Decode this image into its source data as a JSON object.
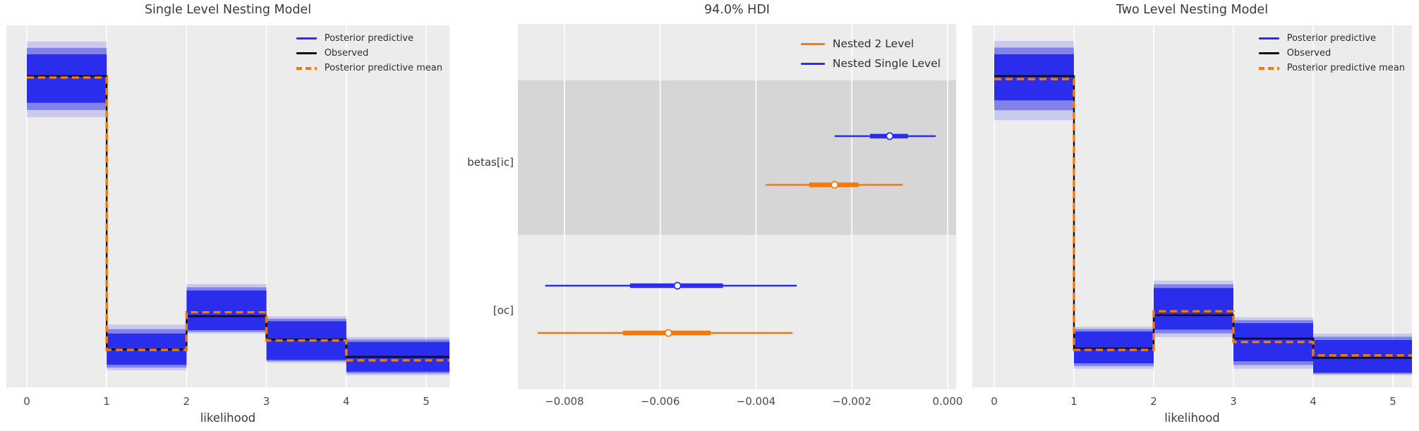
{
  "colors": {
    "figure_bg": "#ffffff",
    "panel_bg": "#ececec",
    "grid": "#ffffff",
    "shaded_band": "#d6d6d6",
    "blue": "#2a2eec",
    "orange": "#f5790a",
    "black": "#0d0d0d",
    "title_text": "#3a3a3a",
    "tick_text": "#4a4a4a"
  },
  "chart_data": [
    {
      "type": "area",
      "subtype": "posterior-predictive-step",
      "title": "Single Level Nesting Model",
      "xlabel": "likelihood",
      "ylabel": "",
      "xticks": [
        {
          "label": "0",
          "value": 0
        },
        {
          "label": "1",
          "value": 1
        },
        {
          "label": "2",
          "value": 2
        },
        {
          "label": "3",
          "value": 3
        },
        {
          "label": "4",
          "value": 4
        },
        {
          "label": "5",
          "value": 5
        }
      ],
      "xlim": [
        -0.26,
        5.29
      ],
      "ylim": [
        0,
        0.73
      ],
      "grid": "vertical-white",
      "legend": [
        "Posterior predictive",
        "Observed",
        "Posterior predictive mean"
      ],
      "legend_position": "upper right",
      "bins": [
        [
          0,
          1
        ],
        [
          1,
          2
        ],
        [
          2,
          3
        ],
        [
          3,
          4
        ],
        [
          4,
          5
        ]
      ],
      "series": [
        {
          "name": "Observed",
          "style": "black-step",
          "values": [
            0.627,
            0.075,
            0.142,
            0.095,
            0.06
          ]
        },
        {
          "name": "Posterior predictive mean",
          "style": "orange-dashed-step",
          "values": [
            0.624,
            0.074,
            0.15,
            0.093,
            0.053
          ]
        }
      ],
      "posterior_band": {
        "solid_hi": [
          0.671,
          0.107,
          0.194,
          0.132,
          0.09
        ],
        "solid_lo": [
          0.573,
          0.044,
          0.114,
          0.054,
          0.03
        ],
        "faint_hi": [
          0.697,
          0.125,
          0.207,
          0.142,
          0.1
        ],
        "faint_lo": [
          0.544,
          0.033,
          0.107,
          0.048,
          0.023
        ]
      }
    },
    {
      "type": "forest",
      "title": "94.0% HDI",
      "xticks": [
        {
          "label": "−0.008",
          "value": -0.008
        },
        {
          "label": "−0.006",
          "value": -0.006
        },
        {
          "label": "−0.004",
          "value": -0.004
        },
        {
          "label": "−0.002",
          "value": -0.002
        },
        {
          "label": "0.000",
          "value": 0.0
        }
      ],
      "xlim": [
        -0.00897,
        0.000177
      ],
      "grid": "vertical-white",
      "legend": [
        "Nested 2 Level",
        "Nested Single Level"
      ],
      "legend_position": "upper right",
      "rows": [
        {
          "label": "betas[ic]",
          "shaded": true,
          "items": [
            {
              "series": "Nested Single Level",
              "color": "blue",
              "hdi": [
                -0.00236,
                -0.00025
              ],
              "quartile": [
                -0.00162,
                -0.00083
              ],
              "median": -0.00121
            },
            {
              "series": "Nested 2 Level",
              "color": "orange",
              "hdi": [
                -0.0038,
                -0.00094
              ],
              "quartile": [
                -0.00289,
                -0.00186
              ],
              "median": -0.00236
            }
          ]
        },
        {
          "label": "[oc]",
          "shaded": false,
          "items": [
            {
              "series": "Nested Single Level",
              "color": "blue",
              "hdi": [
                -0.0084,
                -0.00315
              ],
              "quartile": [
                -0.00663,
                -0.00469
              ],
              "median": -0.00564
            },
            {
              "series": "Nested 2 Level",
              "color": "orange",
              "hdi": [
                -0.00856,
                -0.00324
              ],
              "quartile": [
                -0.00678,
                -0.00495
              ],
              "median": -0.00583
            }
          ]
        }
      ]
    },
    {
      "type": "area",
      "subtype": "posterior-predictive-step",
      "title": "Two Level Nesting Model",
      "xlabel": "likelihood",
      "ylabel": "",
      "xticks": [
        {
          "label": "0",
          "value": 0
        },
        {
          "label": "1",
          "value": 1
        },
        {
          "label": "2",
          "value": 2
        },
        {
          "label": "3",
          "value": 3
        },
        {
          "label": "4",
          "value": 4
        },
        {
          "label": "5",
          "value": 5
        }
      ],
      "xlim": [
        -0.27,
        5.27
      ],
      "ylim": [
        0,
        0.73
      ],
      "grid": "vertical-white",
      "legend": [
        "Posterior predictive",
        "Observed",
        "Posterior predictive mean"
      ],
      "legend_position": "upper right",
      "bins": [
        [
          0,
          1
        ],
        [
          1,
          2
        ],
        [
          2,
          3
        ],
        [
          3,
          4
        ],
        [
          4,
          5
        ]
      ],
      "series": [
        {
          "name": "Observed",
          "style": "black-step",
          "values": [
            0.627,
            0.077,
            0.144,
            0.097,
            0.058
          ]
        },
        {
          "name": "Posterior predictive mean",
          "style": "orange-dashed-step",
          "values": [
            0.621,
            0.074,
            0.152,
            0.09,
            0.063
          ]
        }
      ],
      "posterior_band": {
        "solid_hi": [
          0.671,
          0.111,
          0.199,
          0.128,
          0.094
        ],
        "solid_lo": [
          0.578,
          0.047,
          0.115,
          0.051,
          0.028
        ],
        "faint_hi": [
          0.698,
          0.121,
          0.214,
          0.14,
          0.107
        ],
        "faint_lo": [
          0.538,
          0.036,
          0.1,
          0.036,
          0.023
        ]
      }
    }
  ]
}
